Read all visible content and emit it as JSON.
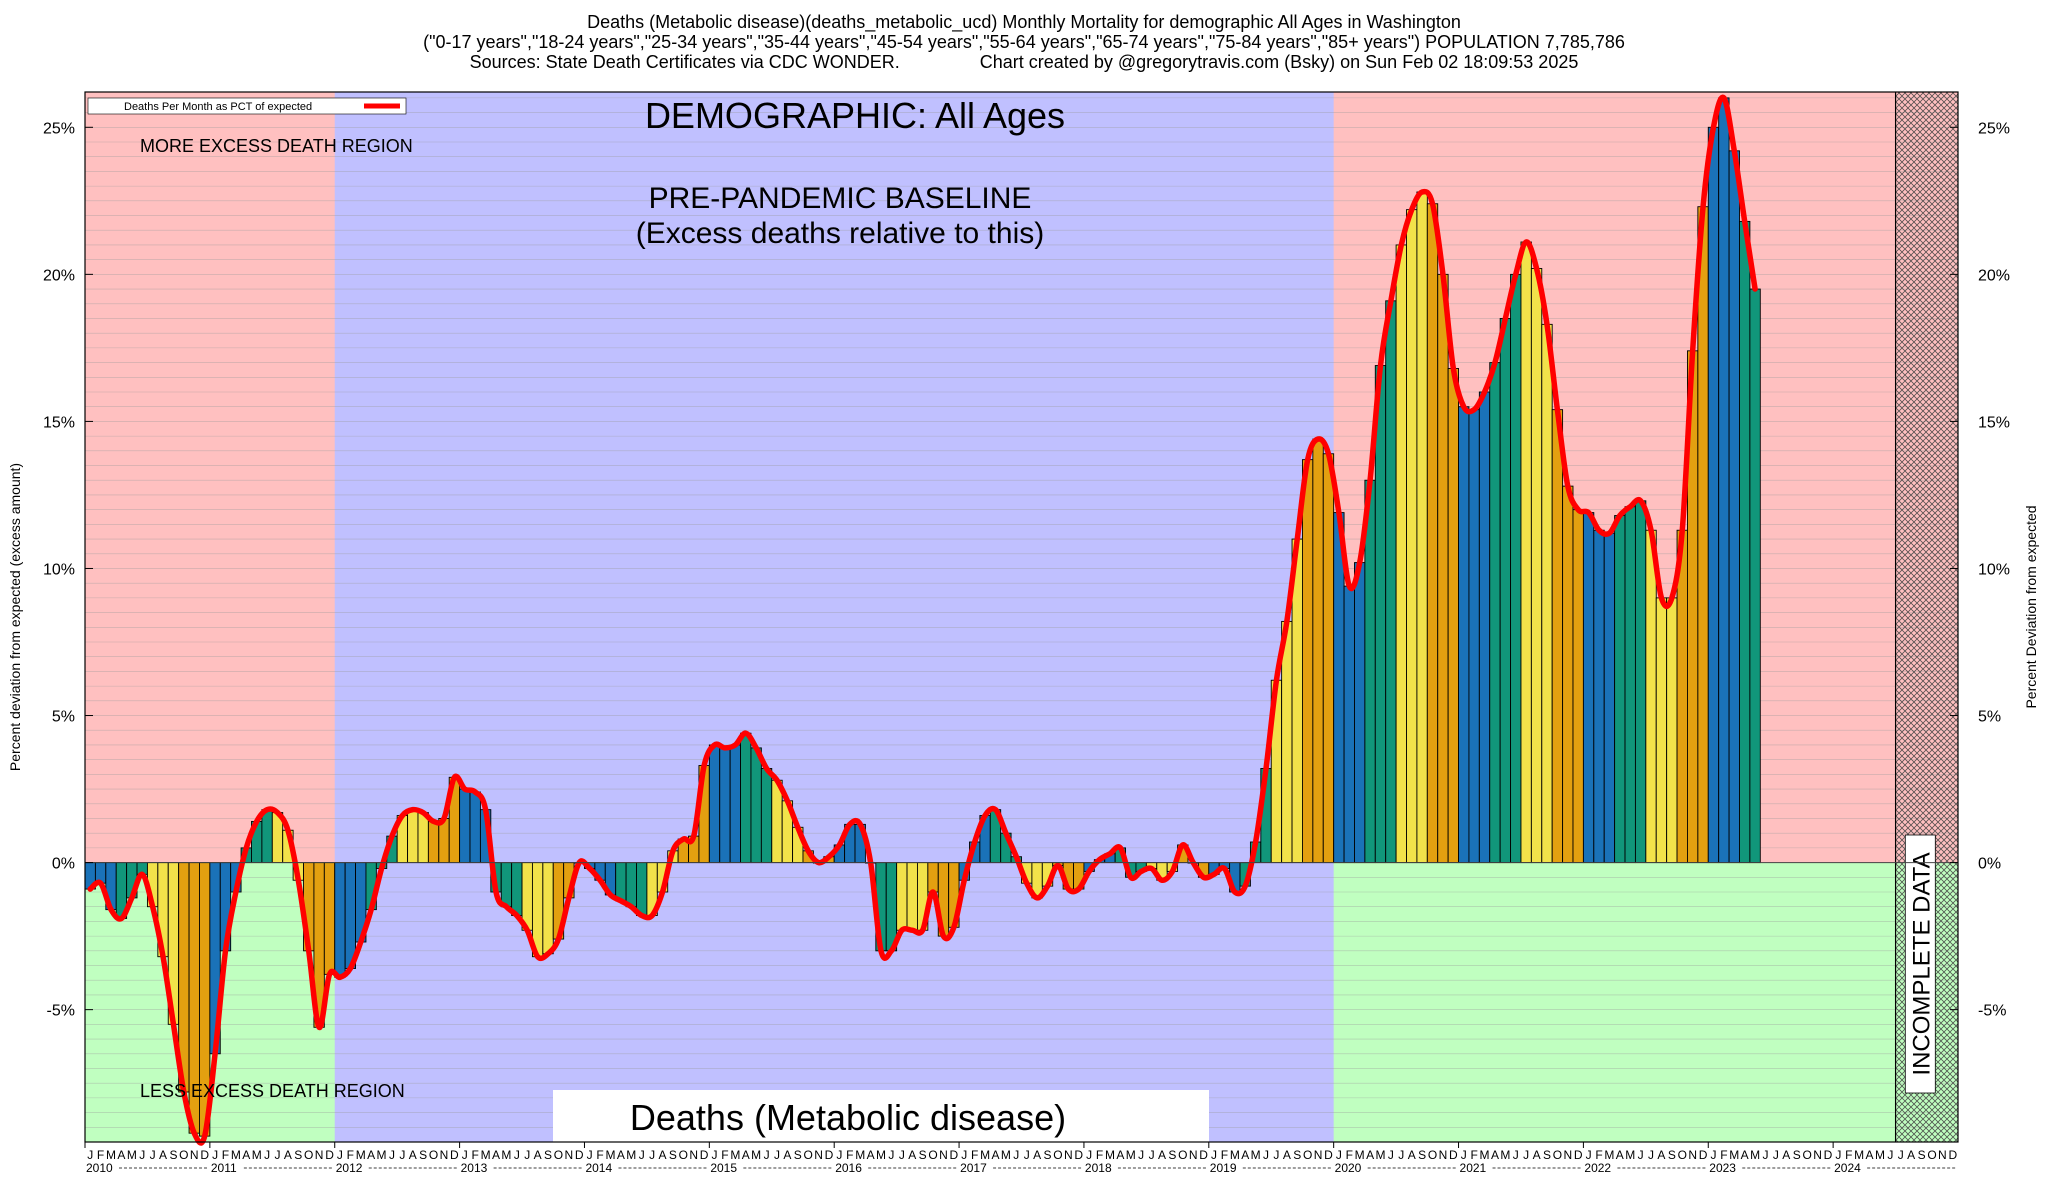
{
  "header": {
    "line1": "Deaths (Metabolic disease)(deaths_metabolic_ucd) Monthly Mortality for demographic All Ages in Washington",
    "line2": "(\"0-17 years\",\"18-24 years\",\"25-34 years\",\"35-44 years\",\"45-54 years\",\"55-64 years\",\"65-74 years\",\"75-84 years\",\"85+ years\") POPULATION 7,785,786",
    "line3": "Sources: State Death Certificates via CDC WONDER.                Chart created by @gregorytravis.com (Bsky) on Sun Feb 02 18:09:53 2025"
  },
  "chart_data": {
    "type": "bar",
    "ylabel": "Percent deviation from expected (excess amount)",
    "y2label": "Percent Deviation from expected",
    "ylim": [
      -9.5,
      26.2
    ],
    "yticks": [
      25,
      20,
      15,
      10,
      5,
      0,
      -5
    ],
    "ytick_labels": [
      "25%",
      "20%",
      "15%",
      "10%",
      "5%",
      "0%",
      "-5%"
    ],
    "grid": true,
    "legend": {
      "label": "Deaths Per Month as PCT of expected",
      "color": "#ff0000",
      "position": "top-left"
    },
    "month_letters": [
      "J",
      "F",
      "M",
      "A",
      "M",
      "J",
      "J",
      "A",
      "S",
      "O",
      "N",
      "D"
    ],
    "years": [
      "2010",
      "2011",
      "2012",
      "2013",
      "2014",
      "2015",
      "2016",
      "2017",
      "2018",
      "2019",
      "2020",
      "2021",
      "2022",
      "2023",
      "2024"
    ],
    "regions": {
      "more_excess_label": "MORE EXCESS DEATH REGION",
      "less_excess_label": "LESS EXCESS DEATH REGION",
      "baseline_title": "PRE-PANDEMIC BASELINE",
      "baseline_subtitle": "(Excess deaths relative to this)",
      "demographic_label": "DEMOGRAPHIC: All Ages",
      "metric_label": "Deaths (Metabolic disease)",
      "incomplete_label": "INCOMPLETE DATA",
      "baseline_start_month": 24,
      "baseline_end_month": 120,
      "incomplete_start_month": 174
    },
    "colors": {
      "more_region": "#ffc0c0",
      "less_region": "#c0ffc0",
      "baseline_region": "#c0c0ff",
      "line": "#ff0000",
      "bar_cycle": [
        "#1a72b8",
        "#1a72b8",
        "#1a72b8",
        "#11967a",
        "#11967a",
        "#11967a",
        "#f2e24a",
        "#f2e24a",
        "#f2e24a",
        "#e3a010",
        "#e3a010",
        "#e3a010"
      ]
    },
    "values": [
      -0.9,
      -0.7,
      -1.6,
      -1.9,
      -1.2,
      -0.4,
      -1.5,
      -3.2,
      -5.5,
      -7.8,
      -9.2,
      -9.3,
      -6.5,
      -3.0,
      -1.0,
      0.5,
      1.4,
      1.8,
      1.7,
      1.1,
      -0.6,
      -3.0,
      -5.6,
      -3.8,
      -3.9,
      -3.6,
      -2.7,
      -1.6,
      -0.2,
      0.9,
      1.6,
      1.8,
      1.7,
      1.4,
      1.5,
      2.9,
      2.5,
      2.4,
      1.8,
      -1.0,
      -1.5,
      -1.8,
      -2.3,
      -3.2,
      -3.1,
      -2.6,
      -1.2,
      0.0,
      -0.2,
      -0.6,
      -1.1,
      -1.3,
      -1.5,
      -1.8,
      -1.8,
      -1.0,
      0.4,
      0.8,
      0.9,
      3.3,
      4.0,
      3.9,
      4.0,
      4.4,
      3.9,
      3.2,
      2.8,
      2.1,
      1.2,
      0.4,
      0.0,
      0.2,
      0.6,
      1.3,
      1.3,
      0.0,
      -3.0,
      -3.0,
      -2.3,
      -2.3,
      -2.3,
      -1.0,
      -2.5,
      -2.2,
      -0.6,
      0.7,
      1.6,
      1.8,
      1.0,
      0.2,
      -0.7,
      -1.2,
      -0.8,
      -0.1,
      -0.9,
      -0.9,
      -0.3,
      0.1,
      0.3,
      0.5,
      -0.5,
      -0.3,
      -0.2,
      -0.6,
      -0.3,
      0.6,
      0.0,
      -0.5,
      -0.4,
      -0.2,
      -1.0,
      -0.8,
      0.7,
      3.2,
      6.2,
      8.2,
      11.0,
      13.7,
      14.4,
      13.9,
      11.9,
      9.4,
      10.2,
      13.0,
      16.9,
      19.1,
      21.0,
      22.2,
      22.8,
      22.4,
      20.0,
      16.8,
      15.5,
      15.4,
      16.0,
      17.0,
      18.5,
      20.0,
      21.1,
      20.2,
      18.3,
      15.4,
      12.8,
      12.0,
      11.9,
      11.3,
      11.2,
      11.8,
      12.1,
      12.3,
      11.3,
      9.0,
      9.0,
      11.3,
      17.4,
      22.3,
      25.0,
      26.0,
      24.2,
      21.8,
      19.5
    ]
  }
}
